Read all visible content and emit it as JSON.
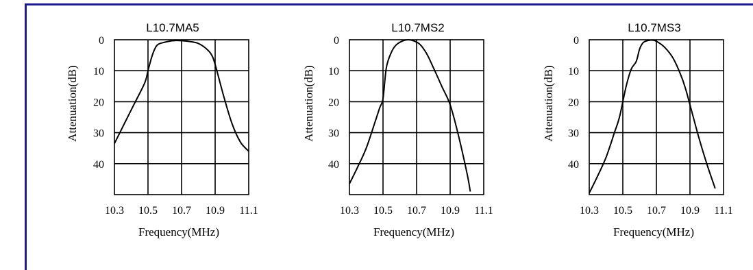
{
  "chart_data": [
    {
      "type": "line",
      "title": "L10.7MA5",
      "xlabel": "Frequency(MHz)",
      "ylabel": "Attenuation(dB)",
      "xlim": [
        10.3,
        11.1
      ],
      "ylim": [
        0,
        50
      ],
      "y_inverted": true,
      "x_ticks": [
        "10.3",
        "10.5",
        "10.7",
        "10.9",
        "11.1"
      ],
      "y_ticks": [
        "0",
        "10",
        "20",
        "30",
        "40"
      ],
      "grid": true,
      "x": [
        10.3,
        10.36,
        10.42,
        10.48,
        10.5,
        10.52,
        10.54,
        10.56,
        10.6,
        10.65,
        10.7,
        10.75,
        10.8,
        10.85,
        10.88,
        10.9,
        10.95,
        11.0,
        11.05,
        11.1
      ],
      "y": [
        33.5,
        27,
        20.5,
        14,
        10,
        6,
        3,
        1.5,
        0.8,
        0.3,
        0.3,
        0.6,
        1.2,
        3,
        5,
        8,
        18,
        27,
        33,
        36
      ]
    },
    {
      "type": "line",
      "title": "L10.7MS2",
      "xlabel": "Frequency(MHz)",
      "ylabel": "Attenuation(dB)",
      "xlim": [
        10.3,
        11.1
      ],
      "ylim": [
        0,
        50
      ],
      "y_inverted": true,
      "x_ticks": [
        "10.3",
        "10.5",
        "10.7",
        "10.9",
        "11.1"
      ],
      "y_ticks": [
        "0",
        "10",
        "20",
        "30",
        "40"
      ],
      "grid": true,
      "x": [
        10.3,
        10.35,
        10.4,
        10.45,
        10.48,
        10.5,
        10.52,
        10.55,
        10.58,
        10.62,
        10.65,
        10.68,
        10.72,
        10.76,
        10.8,
        10.85,
        10.9,
        10.95,
        11.0,
        11.02
      ],
      "y": [
        46.5,
        41,
        35,
        27,
        22,
        19,
        9,
        4,
        1.6,
        0.3,
        0,
        0.3,
        1.5,
        4.5,
        9,
        15,
        21,
        31,
        43,
        49
      ]
    },
    {
      "type": "line",
      "title": "L10.7MS3",
      "xlabel": "Frequency(MHz)",
      "ylabel": "Attenuation(dB)",
      "xlim": [
        10.3,
        11.1
      ],
      "ylim": [
        0,
        50
      ],
      "y_inverted": true,
      "x_ticks": [
        "10.3",
        "10.5",
        "10.7",
        "10.9",
        "11.1"
      ],
      "y_ticks": [
        "0",
        "10",
        "20",
        "30",
        "40"
      ],
      "grid": true,
      "x": [
        10.3,
        10.35,
        10.4,
        10.45,
        10.48,
        10.52,
        10.55,
        10.58,
        10.6,
        10.62,
        10.64,
        10.67,
        10.7,
        10.75,
        10.8,
        10.85,
        10.88,
        10.9,
        10.95,
        11.0,
        11.05
      ],
      "y": [
        49.5,
        44,
        38,
        30,
        25,
        15,
        9.5,
        7,
        3,
        1,
        0.4,
        0.1,
        0.5,
        2.5,
        6,
        12,
        17,
        21,
        31,
        40,
        48
      ]
    }
  ]
}
